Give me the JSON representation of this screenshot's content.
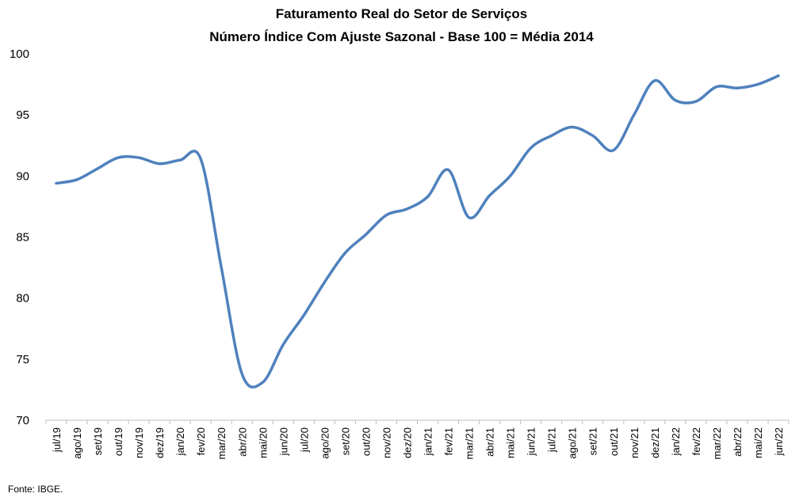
{
  "chart_data": {
    "type": "line",
    "title": "Faturamento Real do Setor de Serviços",
    "subtitle": "Número Índice Com Ajuste Sazonal - Base 100 = Média 2014",
    "xlabel": "",
    "ylabel": "",
    "ylim": [
      70,
      100
    ],
    "yticks": [
      70,
      75,
      80,
      85,
      90,
      95,
      100
    ],
    "grid": false,
    "line_color": "#4F81BD",
    "categories": [
      "jul/19",
      "ago/19",
      "set/19",
      "out/19",
      "nov/19",
      "dez/19",
      "jan/20",
      "fev/20",
      "mar/20",
      "abr/20",
      "mai/20",
      "jun/20",
      "jul/20",
      "ago/20",
      "set/20",
      "out/20",
      "nov/20",
      "dez/20",
      "jan/21",
      "fev/21",
      "mar/21",
      "abr/21",
      "mai/21",
      "jun/21",
      "jul/21",
      "ago/21",
      "set/21",
      "out/21",
      "nov/21",
      "dez/21",
      "jan/22",
      "fev/22",
      "mar/22",
      "abr/22",
      "mai/22",
      "jun/22"
    ],
    "series": [
      {
        "values": [
          89.4,
          89.7,
          90.6,
          91.5,
          91.5,
          91.0,
          91.3,
          91.4,
          82.5,
          73.8,
          73.1,
          76.2,
          78.6,
          81.3,
          83.7,
          85.2,
          86.8,
          87.3,
          88.3,
          90.5,
          86.6,
          88.4,
          90.0,
          92.3,
          93.3,
          94.0,
          93.3,
          92.1,
          95.0,
          97.8,
          96.2,
          96.1,
          97.3,
          97.2,
          97.5,
          98.2
        ]
      }
    ]
  },
  "source": "Fonte: IBGE."
}
